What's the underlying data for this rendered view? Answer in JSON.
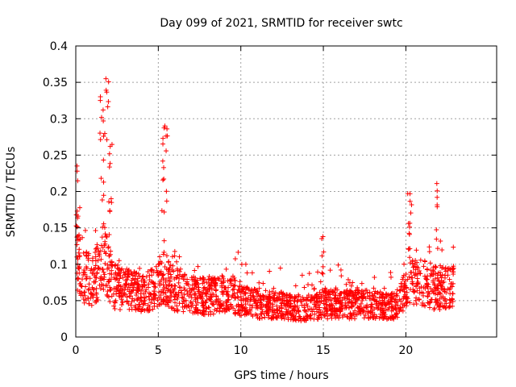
{
  "chart_data": {
    "type": "scatter",
    "title": "Day 099 of 2021, SRMTID for receiver swtc",
    "xlabel": "GPS time / hours",
    "ylabel": "SRMTID / TECUs",
    "xlim": [
      0,
      25.5
    ],
    "ylim": [
      0,
      0.4
    ],
    "xticks": [
      0,
      5,
      10,
      15,
      20
    ],
    "xtick_labels": [
      "0",
      "5",
      "10",
      "15",
      "20"
    ],
    "yticks": [
      0,
      0.05,
      0.1,
      0.15,
      0.2,
      0.25,
      0.3,
      0.35,
      0.4
    ],
    "ytick_labels": [
      "0",
      "0.05",
      "0.1",
      "0.15",
      "0.2",
      "0.25",
      "0.3",
      "0.35",
      "0.4"
    ],
    "grid": true,
    "marker": "+",
    "color": "#ff0000",
    "series": [
      {
        "name": "SRMTID",
        "profile": {
          "hours": [
            0,
            0.2,
            0.5,
            1,
            1.5,
            1.7,
            2,
            2.3,
            3,
            4,
            5,
            5.3,
            5.6,
            6,
            7,
            8,
            9,
            9.5,
            10,
            11,
            12,
            13,
            14,
            15,
            16,
            17,
            18,
            19,
            19.5,
            20,
            20.3,
            21,
            22,
            22.9
          ],
          "median_tecu": [
            0.11,
            0.1,
            0.085,
            0.075,
            0.095,
            0.11,
            0.09,
            0.07,
            0.065,
            0.06,
            0.07,
            0.085,
            0.075,
            0.065,
            0.06,
            0.055,
            0.06,
            0.06,
            0.05,
            0.045,
            0.045,
            0.04,
            0.04,
            0.045,
            0.045,
            0.045,
            0.045,
            0.04,
            0.045,
            0.065,
            0.08,
            0.075,
            0.065,
            0.07
          ]
        },
        "bursts": [
          {
            "hours": [
              1.45,
              2.2
            ],
            "max_tecu": 0.355
          },
          {
            "hours": [
              5.2,
              5.6
            ],
            "max_tecu": 0.29
          },
          {
            "hours": [
              0.0,
              0.15
            ],
            "max_tecu": 0.235
          },
          {
            "hours": [
              20.1,
              20.4
            ],
            "max_tecu": 0.197
          },
          {
            "hours": [
              21.85,
              21.9
            ],
            "max_tecu": 0.211
          },
          {
            "hours": [
              14.9,
              15.05
            ],
            "max_tecu": 0.138
          }
        ],
        "span_hours": [
          0,
          22.9
        ],
        "approx_point_count": 2000
      }
    ]
  }
}
